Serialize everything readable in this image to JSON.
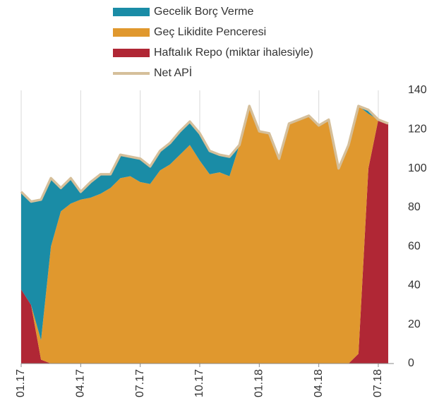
{
  "chart_data": {
    "type": "area",
    "categories": [
      "01.17",
      null,
      null,
      null,
      null,
      null,
      "04.17",
      null,
      null,
      null,
      null,
      null,
      "07.17",
      null,
      null,
      null,
      null,
      null,
      "10.17",
      null,
      null,
      null,
      null,
      null,
      "01.18",
      null,
      null,
      null,
      null,
      null,
      "04.18",
      null,
      null,
      null,
      null,
      null,
      "07.18",
      null
    ],
    "series": [
      {
        "name": "Gecelik Borç Verme",
        "color": "#1a8ca6",
        "values": [
          50,
          53,
          72,
          35,
          12,
          13,
          4,
          8,
          10,
          7,
          12,
          10,
          12,
          9,
          10,
          11,
          12,
          12,
          14,
          12,
          9,
          10,
          0,
          0,
          0,
          0,
          0,
          0,
          0,
          0,
          0,
          0,
          0,
          0,
          0,
          2,
          0,
          0
        ]
      },
      {
        "name": "Geç Likidite Penceresi",
        "color": "#e0982e",
        "values": [
          0,
          0,
          10,
          60,
          78,
          82,
          84,
          85,
          87,
          90,
          95,
          96,
          93,
          92,
          99,
          102,
          107,
          112,
          104,
          97,
          98,
          96,
          112,
          132,
          119,
          118,
          105,
          123,
          125,
          127,
          122,
          125,
          100,
          112,
          127,
          28,
          0,
          0
        ]
      },
      {
        "name": "Haftalık Repo (miktar ihalesiyle)",
        "color": "#b02735",
        "values": [
          38,
          30,
          2,
          0,
          0,
          0,
          0,
          0,
          0,
          0,
          0,
          0,
          0,
          0,
          0,
          0,
          0,
          0,
          0,
          0,
          0,
          0,
          0,
          0,
          0,
          0,
          0,
          0,
          0,
          0,
          0,
          0,
          0,
          0,
          5,
          100,
          125,
          123
        ]
      },
      {
        "name": "Net APİ",
        "color": "#d5bf9a",
        "style": "line",
        "values": [
          88,
          83,
          84,
          95,
          90,
          95,
          88,
          93,
          97,
          97,
          107,
          106,
          105,
          101,
          109,
          113,
          119,
          124,
          118,
          109,
          107,
          106,
          112,
          132,
          119,
          118,
          105,
          123,
          125,
          127,
          122,
          125,
          100,
          112,
          132,
          130,
          125,
          123
        ]
      }
    ],
    "ylim": [
      0,
      140
    ],
    "yticks": [
      0,
      20,
      40,
      60,
      80,
      100,
      120,
      140
    ],
    "grid": true
  }
}
